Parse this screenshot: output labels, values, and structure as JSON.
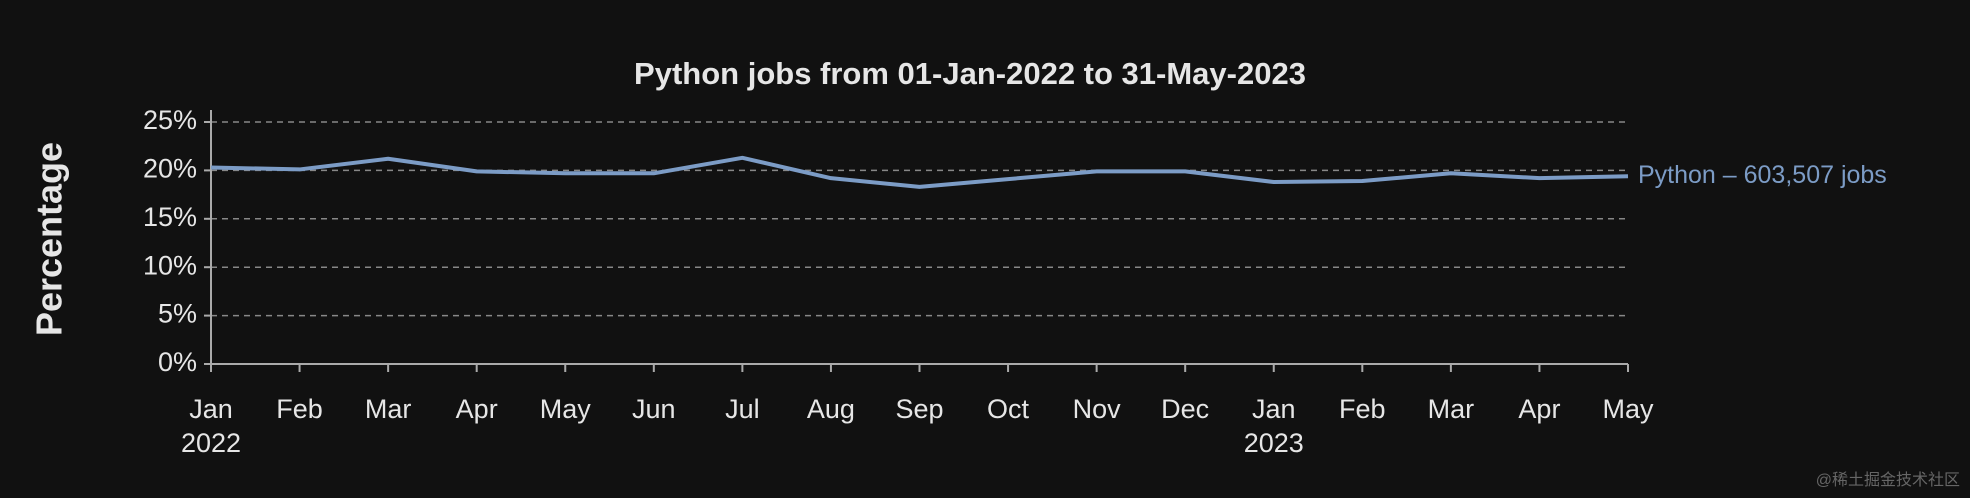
{
  "chart_data": {
    "type": "line",
    "title": "Python jobs from 01-Jan-2022 to 31-May-2023",
    "y_label": "Percentage",
    "categories": [
      "Jan",
      "Feb",
      "Mar",
      "Apr",
      "May",
      "Jun",
      "Jul",
      "Aug",
      "Sep",
      "Oct",
      "Nov",
      "Dec",
      "Jan",
      "Feb",
      "Mar",
      "Apr",
      "May"
    ],
    "category_years": [
      "2022",
      null,
      null,
      null,
      null,
      null,
      null,
      null,
      null,
      null,
      null,
      null,
      "2023",
      null,
      null,
      null,
      null
    ],
    "series": [
      {
        "name": "Python – 603,507 jobs",
        "color": "#7c9cc6",
        "values": [
          20.3,
          20.1,
          21.2,
          19.9,
          19.7,
          19.7,
          21.3,
          19.2,
          18.3,
          19.1,
          19.9,
          19.9,
          18.8,
          18.9,
          19.7,
          19.2,
          19.4
        ]
      }
    ],
    "ylim": [
      0,
      25
    ],
    "yticks": [
      {
        "value": 0,
        "label": "0%"
      },
      {
        "value": 5,
        "label": "5%"
      },
      {
        "value": 10,
        "label": "10%"
      },
      {
        "value": 15,
        "label": "15%"
      },
      {
        "value": 20,
        "label": "20%"
      },
      {
        "value": 25,
        "label": "25%"
      }
    ],
    "grid": true,
    "watermark": "@稀土掘金技术社区"
  }
}
